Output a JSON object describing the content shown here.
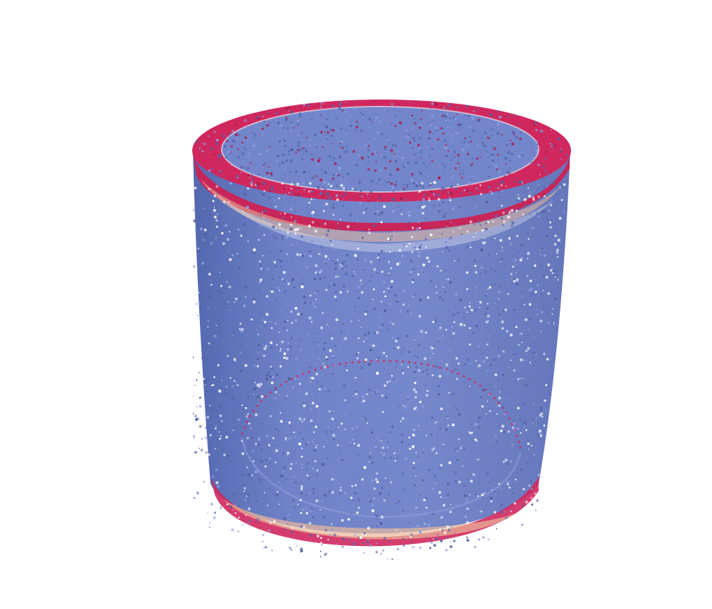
{
  "scene": {
    "subject": "particle-packed-cylinder",
    "background_color": "#ffffff",
    "colors": {
      "bulk_blue": "#6f82c8",
      "bulk_blue_light": "#8f9fdc",
      "bulk_blue_dark": "#5468b0",
      "shadow_blue": "#4f5f9e",
      "rim_red": "#d0285e",
      "rim_red_dark": "#a81d4a",
      "transition_peach": "#e8b99a",
      "transition_white": "#f4f2f4",
      "void_white": "#ffffff"
    }
  }
}
